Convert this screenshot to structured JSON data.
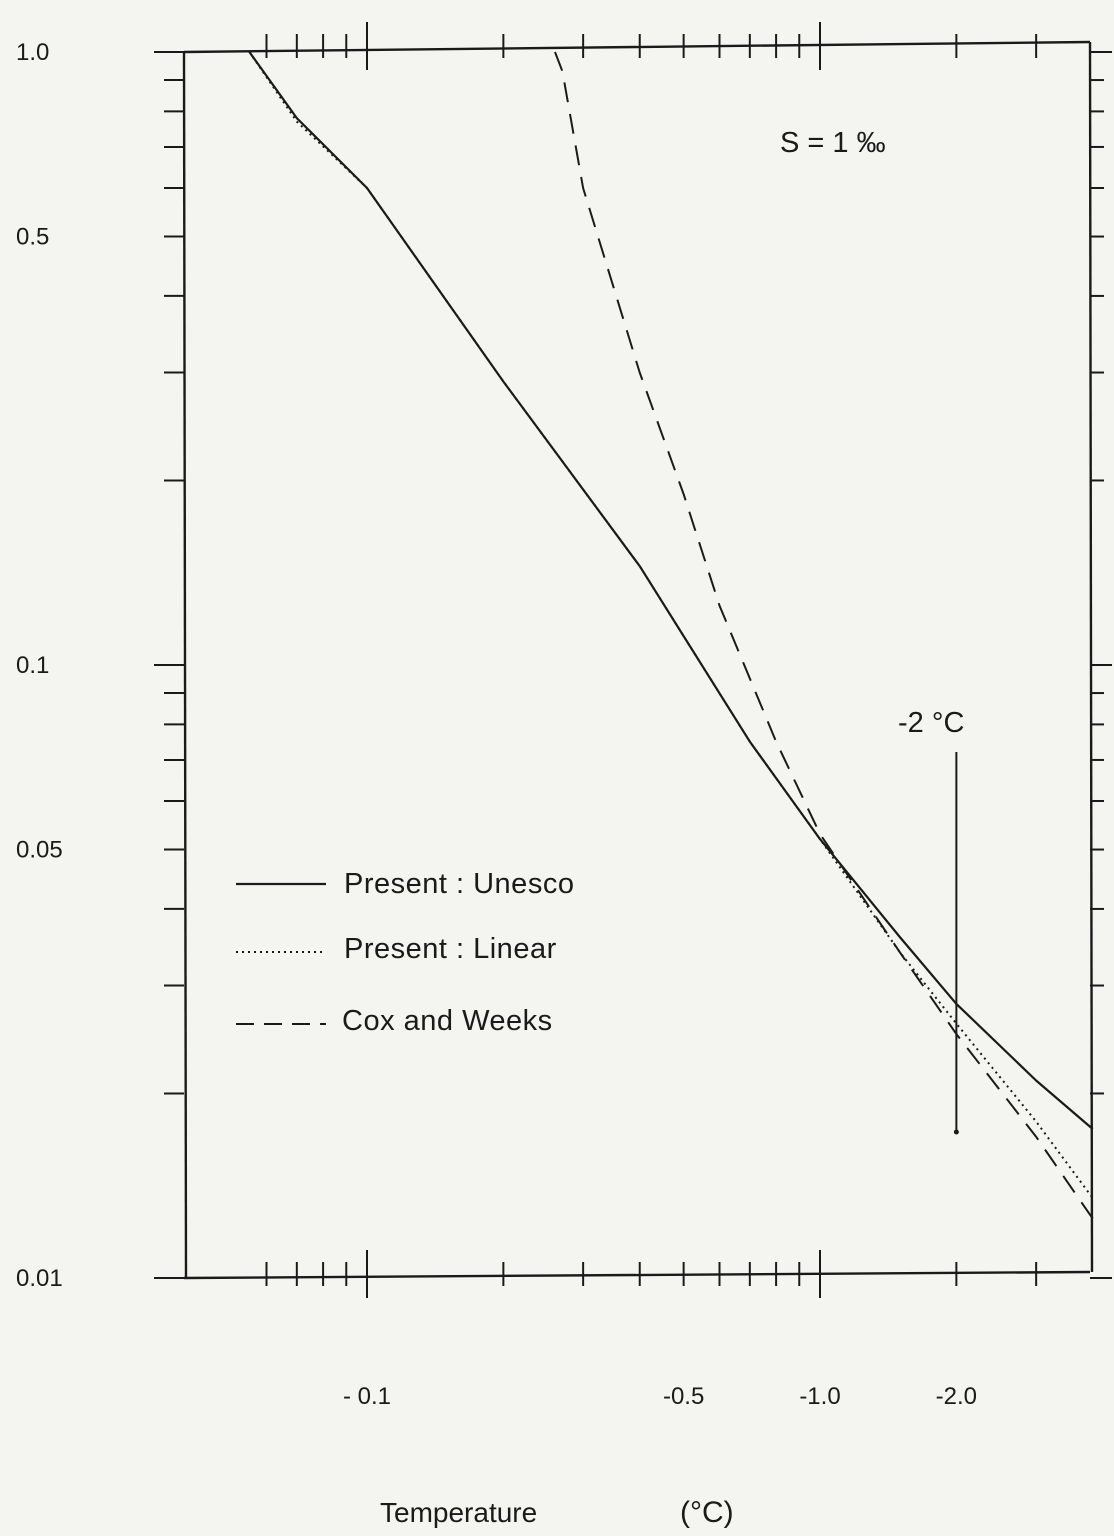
{
  "chart_data": {
    "type": "line",
    "title": "",
    "xlabel": "Temperature",
    "xlabel_unit": "(°C)",
    "ylabel": "",
    "x_scale": "log (magnitude of temperature)",
    "y_scale": "log",
    "xlim": [
      -0.04,
      -4.0
    ],
    "ylim": [
      0.01,
      1.0
    ],
    "x_tick_labels": [
      {
        "value": -0.1,
        "label": "- 0.1"
      },
      {
        "value": -0.5,
        "label": "-0.5"
      },
      {
        "value": -1.0,
        "label": "-1.0"
      },
      {
        "value": -2.0,
        "label": "-2.0"
      }
    ],
    "y_tick_labels": [
      {
        "value": 1.0,
        "label": "1.0"
      },
      {
        "value": 0.5,
        "label": "0.5"
      },
      {
        "value": 0.1,
        "label": "0.1"
      },
      {
        "value": 0.05,
        "label": "0.05"
      },
      {
        "value": 0.01,
        "label": "0.01"
      }
    ],
    "annotations": {
      "salinity": "S = 1 ‰",
      "marker_label": "-2 °C",
      "marker_value": -2.0
    },
    "legend_position": "left",
    "grid": false,
    "series": [
      {
        "name": "Present : Unesco",
        "style": "solid",
        "x": [
          -0.055,
          -0.07,
          -0.1,
          -0.2,
          -0.4,
          -0.7,
          -1.0,
          -1.5,
          -2.0,
          -3.0,
          -4.0
        ],
        "y": [
          1.0,
          0.78,
          0.6,
          0.29,
          0.145,
          0.075,
          0.052,
          0.036,
          0.028,
          0.021,
          0.0175
        ]
      },
      {
        "name": "Present : Linear",
        "style": "dotted",
        "x": [
          -0.055,
          -0.07,
          -0.1,
          -0.2,
          -0.4,
          -0.7,
          -1.0,
          -1.5,
          -2.0,
          -3.0,
          -4.0
        ],
        "y": [
          1.0,
          0.77,
          0.6,
          0.29,
          0.145,
          0.075,
          0.052,
          0.034,
          0.026,
          0.018,
          0.0135
        ]
      },
      {
        "name": "Cox and Weeks",
        "style": "dashed",
        "x": [
          -0.26,
          -0.27,
          -0.3,
          -0.4,
          -0.5,
          -0.6,
          -0.8,
          -1.0,
          -1.5,
          -2.0,
          -3.0,
          -4.0
        ],
        "y": [
          1.0,
          0.93,
          0.6,
          0.3,
          0.19,
          0.125,
          0.075,
          0.053,
          0.034,
          0.025,
          0.017,
          0.0125
        ]
      }
    ]
  }
}
